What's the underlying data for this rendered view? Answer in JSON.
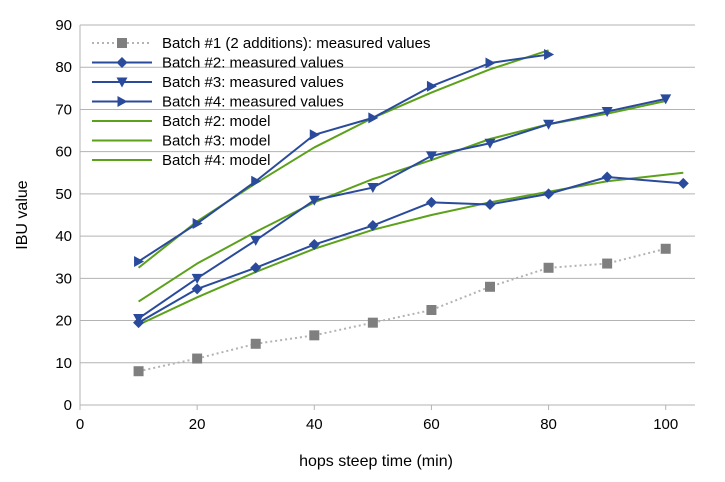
{
  "chart_data": {
    "type": "line",
    "xlabel": "hops steep time (min)",
    "ylabel": "IBU value",
    "xlim": [
      0,
      105
    ],
    "ylim": [
      0,
      90
    ],
    "x_ticks": [
      0,
      20,
      40,
      60,
      80,
      100
    ],
    "y_ticks": [
      0,
      10,
      20,
      30,
      40,
      50,
      60,
      70,
      80,
      90
    ],
    "grid": "horizontal",
    "legend_position": "top-left",
    "series": [
      {
        "name": "Batch #1 (2 additions): measured values",
        "color": "#7f7f7f",
        "line_color": "#b3b3b3",
        "line_style": "dotted",
        "marker": "square",
        "x": [
          10,
          20,
          30,
          40,
          50,
          60,
          70,
          80,
          90,
          100
        ],
        "y": [
          8,
          11,
          14.5,
          16.5,
          19.5,
          22.5,
          28,
          32.5,
          33.5,
          37
        ]
      },
      {
        "name": "Batch #2: measured values",
        "color": "#2a4a9c",
        "line_style": "solid",
        "marker": "diamond",
        "x": [
          10,
          20,
          30,
          40,
          50,
          60,
          70,
          80,
          90,
          103
        ],
        "y": [
          19.5,
          27.5,
          32.5,
          38,
          42.5,
          48,
          47.5,
          50,
          54,
          52.5
        ]
      },
      {
        "name": "Batch #3: measured values",
        "color": "#2a4a9c",
        "line_style": "solid",
        "marker": "triangle-down",
        "x": [
          10,
          20,
          30,
          40,
          50,
          60,
          70,
          80,
          90,
          100
        ],
        "y": [
          20.5,
          30,
          39,
          48.5,
          51.5,
          59,
          62,
          66.5,
          69.5,
          72.5
        ]
      },
      {
        "name": "Batch #4: measured values",
        "color": "#2a4a9c",
        "line_style": "solid",
        "marker": "triangle-right",
        "x": [
          10,
          20,
          30,
          40,
          50,
          60,
          70,
          80
        ],
        "y": [
          34,
          43,
          53,
          64,
          68,
          75.5,
          81,
          83
        ]
      },
      {
        "name": "Batch #2: model",
        "color": "#5ca11a",
        "line_style": "solid",
        "marker": "none",
        "x": [
          10,
          20,
          30,
          40,
          50,
          60,
          70,
          80,
          90,
          103
        ],
        "y": [
          19,
          25.5,
          31.5,
          37,
          41.5,
          45,
          48,
          50.5,
          53,
          55
        ]
      },
      {
        "name": "Batch #3: model",
        "color": "#5ca11a",
        "line_style": "solid",
        "marker": "none",
        "x": [
          10,
          20,
          30,
          40,
          50,
          60,
          70,
          80,
          90,
          100
        ],
        "y": [
          24.5,
          33.5,
          41,
          48,
          53.5,
          58,
          63,
          66.5,
          69,
          72
        ]
      },
      {
        "name": "Batch #4: model",
        "color": "#5ca11a",
        "line_style": "solid",
        "marker": "none",
        "x": [
          10,
          20,
          30,
          40,
          50,
          60,
          70,
          80
        ],
        "y": [
          32.5,
          43.5,
          52.5,
          61,
          68,
          74,
          79.5,
          84
        ]
      }
    ]
  }
}
